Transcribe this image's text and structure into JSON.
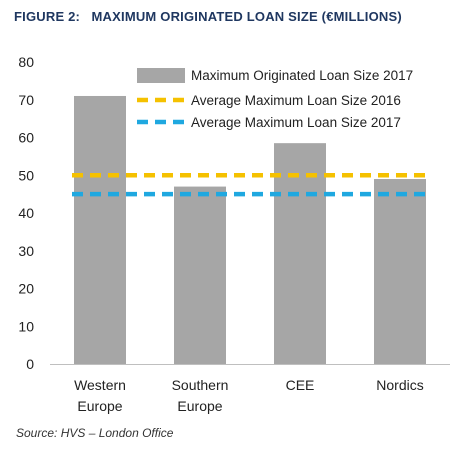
{
  "figure": {
    "title": "FIGURE 2:   MAXIMUM ORIGINATED LOAN SIZE (€MILLIONS)",
    "source": "Source: HVS – London Office"
  },
  "chart_data": {
    "type": "bar",
    "categories": [
      [
        "Western",
        "Europe"
      ],
      [
        "Southern",
        "Europe"
      ],
      [
        "CEE"
      ],
      [
        "Nordics"
      ]
    ],
    "series": [
      {
        "name": "Maximum Originated Loan Size 2017",
        "kind": "bar",
        "color": "#a6a6a6",
        "values": [
          71,
          47,
          58.5,
          49
        ]
      },
      {
        "name": "Average Maximum Loan Size 2016",
        "kind": "dashed-line",
        "color": "#f5c100",
        "values": [
          50,
          50,
          50,
          50
        ]
      },
      {
        "name": "Average Maximum Loan Size 2017",
        "kind": "dashed-line",
        "color": "#1fa8e0",
        "values": [
          45,
          45,
          45,
          45
        ]
      }
    ],
    "ylim": [
      0,
      80
    ],
    "yticks": [
      0,
      10,
      20,
      30,
      40,
      50,
      60,
      70,
      80
    ],
    "grid": false,
    "legend_position": "top-right"
  }
}
